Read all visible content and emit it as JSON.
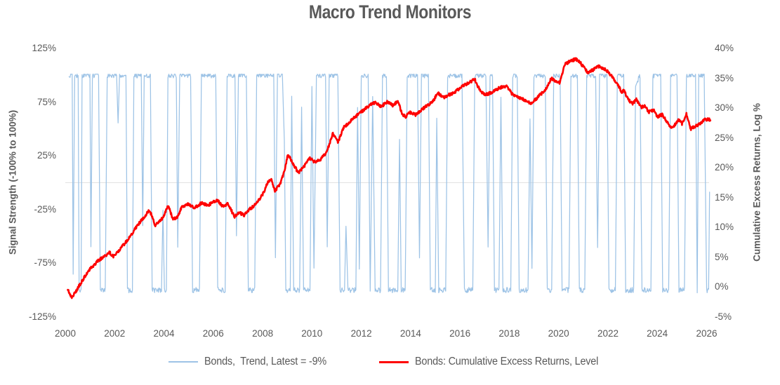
{
  "chart_data": {
    "type": "line",
    "title": "Macro Trend Monitors",
    "legend_position": "bottom",
    "grid": {
      "horizontal_zero_line_only": true
    },
    "x_axis": {
      "range": [
        2000,
        2026.1
      ],
      "ticks": [
        2000,
        2002,
        2004,
        2006,
        2008,
        2010,
        2012,
        2014,
        2016,
        2018,
        2020,
        2022,
        2024,
        2026
      ]
    },
    "y_left": {
      "label": "Signal Strength (-100% to 100%)",
      "range": [
        -125,
        125
      ],
      "ticks": [
        125,
        75,
        25,
        -25,
        -75,
        -125
      ],
      "tick_suffix": "%"
    },
    "y_right": {
      "label": "Cumulative Excess Returns, Log %",
      "range": [
        -5,
        40
      ],
      "ticks": [
        40,
        35,
        30,
        25,
        20,
        15,
        10,
        5,
        0,
        -5
      ],
      "tick_suffix": "%"
    },
    "series": [
      {
        "name": "Bonds,  Trend, Latest = -9%",
        "axis": "left",
        "color": "#9DC3E6",
        "latest_value_pct": -9,
        "style": "noisy-regime-switching-signal",
        "points": [
          [
            2000.15,
            100
          ],
          [
            2000.28,
            100
          ],
          [
            2000.32,
            -85
          ],
          [
            2000.38,
            100
          ],
          [
            2000.52,
            100
          ],
          [
            2000.56,
            -100
          ],
          [
            2000.64,
            -100
          ],
          [
            2000.68,
            100
          ],
          [
            2001.0,
            100
          ],
          [
            2001.04,
            -60
          ],
          [
            2001.1,
            100
          ],
          [
            2001.35,
            100
          ],
          [
            2001.42,
            -100
          ],
          [
            2001.62,
            -100
          ],
          [
            2001.7,
            100
          ],
          [
            2002.08,
            100
          ],
          [
            2002.14,
            55
          ],
          [
            2002.2,
            100
          ],
          [
            2002.46,
            100
          ],
          [
            2002.52,
            -100
          ],
          [
            2002.72,
            -100
          ],
          [
            2002.78,
            100
          ],
          [
            2003.08,
            100
          ],
          [
            2003.14,
            -40
          ],
          [
            2003.2,
            100
          ],
          [
            2003.45,
            100
          ],
          [
            2003.52,
            -100
          ],
          [
            2003.9,
            -100
          ],
          [
            2003.96,
            -25
          ],
          [
            2004.02,
            -100
          ],
          [
            2004.1,
            -100
          ],
          [
            2004.16,
            100
          ],
          [
            2004.5,
            100
          ],
          [
            2004.56,
            -60
          ],
          [
            2004.64,
            100
          ],
          [
            2005.08,
            100
          ],
          [
            2005.16,
            -100
          ],
          [
            2005.44,
            -100
          ],
          [
            2005.52,
            100
          ],
          [
            2006.1,
            100
          ],
          [
            2006.18,
            -100
          ],
          [
            2006.48,
            -100
          ],
          [
            2006.56,
            100
          ],
          [
            2006.88,
            100
          ],
          [
            2006.94,
            -50
          ],
          [
            2007.02,
            100
          ],
          [
            2007.34,
            100
          ],
          [
            2007.42,
            -100
          ],
          [
            2007.68,
            -100
          ],
          [
            2007.76,
            100
          ],
          [
            2008.45,
            100
          ],
          [
            2008.52,
            -70
          ],
          [
            2008.6,
            100
          ],
          [
            2008.8,
            100
          ],
          [
            2008.88,
            40
          ],
          [
            2008.94,
            -100
          ],
          [
            2009.12,
            -100
          ],
          [
            2009.18,
            80
          ],
          [
            2009.26,
            -100
          ],
          [
            2009.5,
            -100
          ],
          [
            2009.58,
            70
          ],
          [
            2009.66,
            -100
          ],
          [
            2009.92,
            -100
          ],
          [
            2010.0,
            90
          ],
          [
            2010.08,
            -80
          ],
          [
            2010.18,
            100
          ],
          [
            2010.55,
            100
          ],
          [
            2010.62,
            -60
          ],
          [
            2010.7,
            100
          ],
          [
            2011.05,
            100
          ],
          [
            2011.14,
            -100
          ],
          [
            2011.32,
            -100
          ],
          [
            2011.38,
            -40
          ],
          [
            2011.46,
            -100
          ],
          [
            2011.78,
            -100
          ],
          [
            2011.85,
            70
          ],
          [
            2011.92,
            -80
          ],
          [
            2012.0,
            100
          ],
          [
            2012.28,
            100
          ],
          [
            2012.36,
            -100
          ],
          [
            2012.46,
            80
          ],
          [
            2012.56,
            -100
          ],
          [
            2012.78,
            -100
          ],
          [
            2012.86,
            100
          ],
          [
            2013.02,
            100
          ],
          [
            2013.1,
            -100
          ],
          [
            2013.48,
            -100
          ],
          [
            2013.55,
            40
          ],
          [
            2013.62,
            -100
          ],
          [
            2013.78,
            -100
          ],
          [
            2013.86,
            100
          ],
          [
            2014.28,
            100
          ],
          [
            2014.36,
            -70
          ],
          [
            2014.44,
            100
          ],
          [
            2014.72,
            100
          ],
          [
            2014.8,
            -100
          ],
          [
            2015.0,
            -100
          ],
          [
            2015.06,
            60
          ],
          [
            2015.14,
            -100
          ],
          [
            2015.42,
            -100
          ],
          [
            2015.5,
            100
          ],
          [
            2016.08,
            100
          ],
          [
            2016.18,
            -100
          ],
          [
            2016.52,
            -100
          ],
          [
            2016.6,
            100
          ],
          [
            2017.05,
            100
          ],
          [
            2017.14,
            -60
          ],
          [
            2017.22,
            100
          ],
          [
            2017.32,
            100
          ],
          [
            2017.4,
            -100
          ],
          [
            2017.58,
            -100
          ],
          [
            2017.66,
            80
          ],
          [
            2017.74,
            -100
          ],
          [
            2018.06,
            -100
          ],
          [
            2018.14,
            100
          ],
          [
            2018.32,
            100
          ],
          [
            2018.4,
            -100
          ],
          [
            2018.76,
            -100
          ],
          [
            2018.84,
            60
          ],
          [
            2018.92,
            -80
          ],
          [
            2019.0,
            100
          ],
          [
            2019.46,
            100
          ],
          [
            2019.54,
            -100
          ],
          [
            2019.72,
            -100
          ],
          [
            2019.8,
            100
          ],
          [
            2020.06,
            100
          ],
          [
            2020.14,
            -100
          ],
          [
            2020.42,
            -100
          ],
          [
            2020.5,
            100
          ],
          [
            2020.76,
            100
          ],
          [
            2020.84,
            -100
          ],
          [
            2021.06,
            -100
          ],
          [
            2021.14,
            100
          ],
          [
            2021.5,
            100
          ],
          [
            2021.58,
            -60
          ],
          [
            2021.66,
            100
          ],
          [
            2021.96,
            100
          ],
          [
            2022.04,
            -100
          ],
          [
            2022.3,
            -100
          ],
          [
            2022.38,
            100
          ],
          [
            2022.64,
            100
          ],
          [
            2022.72,
            -100
          ],
          [
            2023.04,
            -100
          ],
          [
            2023.12,
            90
          ],
          [
            2023.3,
            100
          ],
          [
            2023.38,
            -100
          ],
          [
            2023.74,
            -100
          ],
          [
            2023.82,
            100
          ],
          [
            2024.14,
            100
          ],
          [
            2024.22,
            -100
          ],
          [
            2024.46,
            -100
          ],
          [
            2024.54,
            100
          ],
          [
            2024.8,
            100
          ],
          [
            2024.88,
            -100
          ],
          [
            2025.1,
            -100
          ],
          [
            2025.18,
            100
          ],
          [
            2025.55,
            100
          ],
          [
            2025.62,
            -100
          ],
          [
            2025.68,
            100
          ],
          [
            2025.9,
            100
          ],
          [
            2026.0,
            -100
          ],
          [
            2026.08,
            -100
          ],
          [
            2026.12,
            -9
          ]
        ]
      },
      {
        "name": "Bonds: Cumulative Excess Returns, Level",
        "axis": "right",
        "color": "#FE0000",
        "points": [
          [
            2000.1,
            -0.3
          ],
          [
            2000.25,
            -1.8
          ],
          [
            2000.45,
            -0.6
          ],
          [
            2000.7,
            1.2
          ],
          [
            2001.0,
            3.0
          ],
          [
            2001.3,
            4.3
          ],
          [
            2001.6,
            5.2
          ],
          [
            2001.8,
            5.8
          ],
          [
            2001.95,
            5.1
          ],
          [
            2002.2,
            6.3
          ],
          [
            2002.45,
            7.5
          ],
          [
            2002.65,
            8.6
          ],
          [
            2002.95,
            10.5
          ],
          [
            2003.2,
            11.8
          ],
          [
            2003.42,
            12.9
          ],
          [
            2003.65,
            10.3
          ],
          [
            2003.8,
            11.1
          ],
          [
            2003.95,
            11.5
          ],
          [
            2004.17,
            13.7
          ],
          [
            2004.37,
            11.3
          ],
          [
            2004.57,
            11.9
          ],
          [
            2004.72,
            13.5
          ],
          [
            2004.95,
            13.9
          ],
          [
            2005.24,
            13.3
          ],
          [
            2005.52,
            14.1
          ],
          [
            2005.8,
            13.7
          ],
          [
            2006.0,
            14.3
          ],
          [
            2006.15,
            14.6
          ],
          [
            2006.4,
            13.5
          ],
          [
            2006.6,
            14.0
          ],
          [
            2006.85,
            11.8
          ],
          [
            2007.05,
            12.5
          ],
          [
            2007.25,
            12.0
          ],
          [
            2007.45,
            13.0
          ],
          [
            2007.68,
            13.7
          ],
          [
            2008.0,
            15.5
          ],
          [
            2008.2,
            17.5
          ],
          [
            2008.35,
            18.1
          ],
          [
            2008.5,
            16.2
          ],
          [
            2008.7,
            17.1
          ],
          [
            2008.9,
            19.6
          ],
          [
            2009.03,
            22.3
          ],
          [
            2009.2,
            21.0
          ],
          [
            2009.45,
            19.1
          ],
          [
            2009.7,
            20.3
          ],
          [
            2009.9,
            21.6
          ],
          [
            2010.1,
            21.0
          ],
          [
            2010.35,
            21.4
          ],
          [
            2010.6,
            22.6
          ],
          [
            2010.85,
            25.8
          ],
          [
            2011.05,
            24.3
          ],
          [
            2011.3,
            26.8
          ],
          [
            2011.7,
            28.4
          ],
          [
            2012.1,
            29.7
          ],
          [
            2012.4,
            30.7
          ],
          [
            2012.6,
            30.9
          ],
          [
            2012.8,
            30.2
          ],
          [
            2013.05,
            31.1
          ],
          [
            2013.3,
            30.4
          ],
          [
            2013.48,
            31.2
          ],
          [
            2013.65,
            29.1
          ],
          [
            2013.8,
            28.5
          ],
          [
            2013.95,
            29.3
          ],
          [
            2014.2,
            28.9
          ],
          [
            2014.5,
            29.9
          ],
          [
            2014.9,
            31.1
          ],
          [
            2015.1,
            32.5
          ],
          [
            2015.35,
            31.8
          ],
          [
            2015.6,
            32.3
          ],
          [
            2015.8,
            32.7
          ],
          [
            2016.0,
            33.4
          ],
          [
            2016.3,
            34.1
          ],
          [
            2016.6,
            34.8
          ],
          [
            2016.8,
            33.0
          ],
          [
            2017.0,
            32.2
          ],
          [
            2017.3,
            32.6
          ],
          [
            2017.6,
            33.4
          ],
          [
            2017.9,
            33.6
          ],
          [
            2018.1,
            32.4
          ],
          [
            2018.4,
            31.7
          ],
          [
            2018.7,
            31.2
          ],
          [
            2018.9,
            30.8
          ],
          [
            2019.2,
            32.0
          ],
          [
            2019.5,
            33.2
          ],
          [
            2019.7,
            35.0
          ],
          [
            2019.9,
            34.5
          ],
          [
            2020.05,
            34.2
          ],
          [
            2020.25,
            37.3
          ],
          [
            2020.5,
            37.9
          ],
          [
            2020.7,
            38.2
          ],
          [
            2020.9,
            37.5
          ],
          [
            2021.0,
            36.9
          ],
          [
            2021.2,
            35.9
          ],
          [
            2021.35,
            36.3
          ],
          [
            2021.6,
            37.0
          ],
          [
            2021.9,
            36.5
          ],
          [
            2022.1,
            35.6
          ],
          [
            2022.4,
            34.0
          ],
          [
            2022.55,
            32.6
          ],
          [
            2022.65,
            33.1
          ],
          [
            2022.8,
            31.5
          ],
          [
            2023.0,
            30.7
          ],
          [
            2023.15,
            31.4
          ],
          [
            2023.35,
            30.1
          ],
          [
            2023.5,
            30.4
          ],
          [
            2023.65,
            29.3
          ],
          [
            2023.85,
            29.7
          ],
          [
            2024.0,
            28.5
          ],
          [
            2024.2,
            28.9
          ],
          [
            2024.4,
            27.7
          ],
          [
            2024.6,
            26.6
          ],
          [
            2024.85,
            28.0
          ],
          [
            2025.0,
            27.4
          ],
          [
            2025.18,
            29.0
          ],
          [
            2025.35,
            26.5
          ],
          [
            2025.5,
            26.9
          ],
          [
            2025.7,
            27.3
          ],
          [
            2025.9,
            28.0
          ],
          [
            2026.05,
            28.1
          ],
          [
            2026.15,
            28.0
          ]
        ]
      }
    ]
  },
  "colors": {
    "text": "#595959",
    "grid": "#E2E2E2",
    "background": "#FFFFFF"
  }
}
